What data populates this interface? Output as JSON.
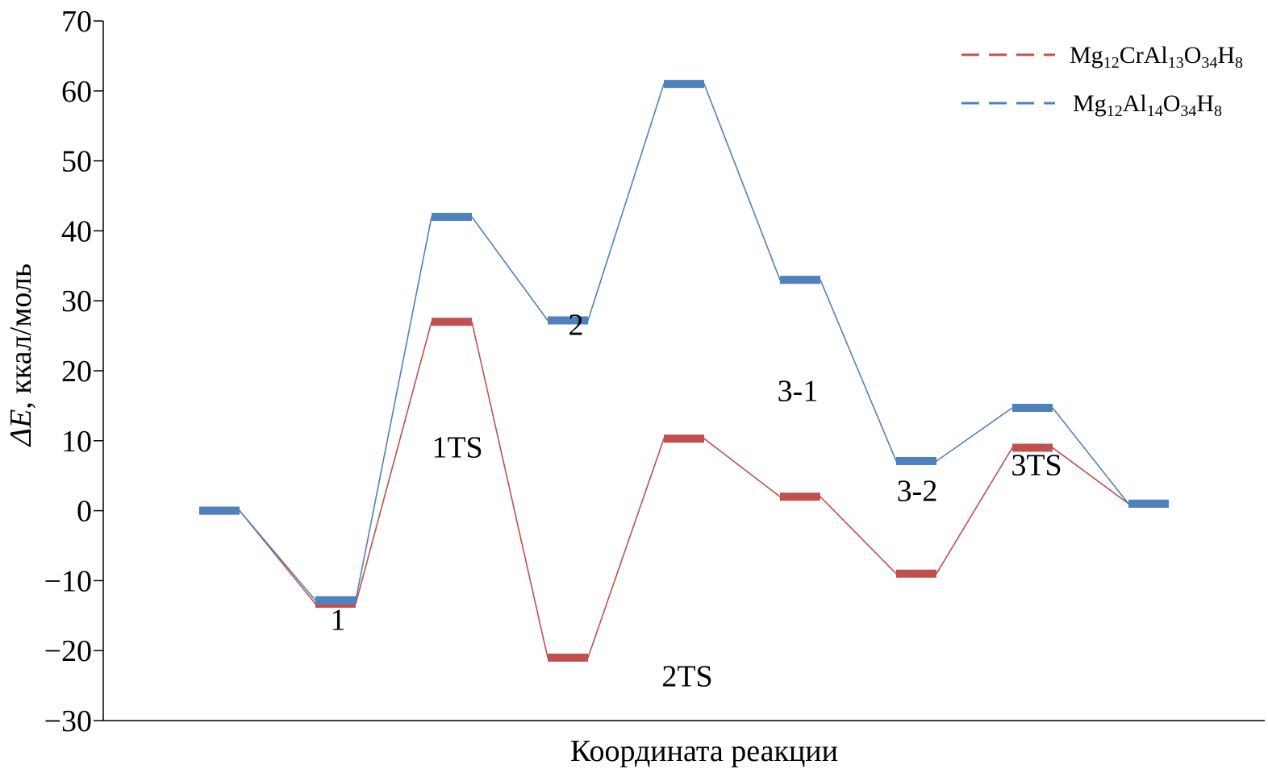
{
  "chart_data": {
    "type": "line",
    "title": "",
    "xlabel": "Координата реакции",
    "ylabel_symbol": "ΔE",
    "ylabel_unit": ", ккал/моль",
    "ylim": [
      -30,
      70
    ],
    "yticks": [
      70,
      60,
      50,
      40,
      30,
      20,
      10,
      0,
      -10,
      -20,
      -30
    ],
    "ytick_labels": [
      "70",
      "60",
      "50",
      "40",
      "30",
      "20",
      "10",
      "0",
      "−10",
      "−20",
      "−30"
    ],
    "grid": false,
    "legend_position": "top-right",
    "steps": 9,
    "series": [
      {
        "name": "Mg12CrAl13O34H8",
        "color": "#c0504d",
        "values": [
          0,
          -13.3,
          27,
          -21,
          10.3,
          2,
          -9,
          9,
          1
        ]
      },
      {
        "name": "Mg12Al14O34H8",
        "color": "#4f81bd",
        "values": [
          0,
          -12.8,
          42,
          27.2,
          61,
          33,
          7.1,
          14.7,
          1
        ]
      }
    ],
    "annotations": [
      {
        "text": "1",
        "step": 1
      },
      {
        "text": "1TS",
        "step": 2
      },
      {
        "text": "2",
        "step": 3
      },
      {
        "text": "2TS",
        "step": 4
      },
      {
        "text": "3-1",
        "step": 5
      },
      {
        "text": "3-2",
        "step": 6
      },
      {
        "text": "3TS",
        "step": 7
      }
    ]
  }
}
